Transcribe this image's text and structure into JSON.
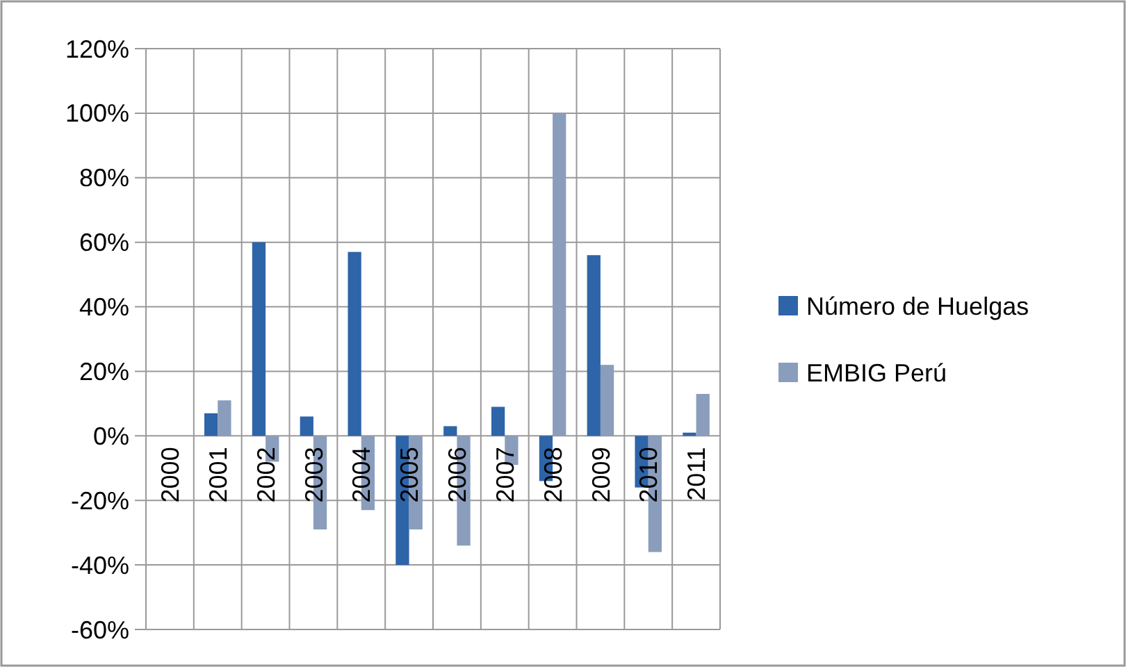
{
  "chart_data": {
    "type": "bar",
    "categories": [
      "2000",
      "2001",
      "2002",
      "2003",
      "2004",
      "2005",
      "2006",
      "2007",
      "2008",
      "2009",
      "2010",
      "2011"
    ],
    "series": [
      {
        "name": "Número de Huelgas",
        "color": "#2e64a8",
        "values": [
          null,
          7,
          60,
          6,
          57,
          -40,
          3,
          9,
          -14,
          56,
          -16,
          1
        ]
      },
      {
        "name": "EMBIG Perú",
        "color": "#8a9dbd",
        "values": [
          null,
          11,
          -8,
          -29,
          -23,
          -29,
          -34,
          -9,
          100,
          22,
          -36,
          13
        ]
      }
    ],
    "ylim": [
      -60,
      120
    ],
    "yticks": [
      {
        "value": -60,
        "label": "-60%"
      },
      {
        "value": -40,
        "label": "-40%"
      },
      {
        "value": -20,
        "label": "-20%"
      },
      {
        "value": 0,
        "label": "0%"
      },
      {
        "value": 20,
        "label": "20%"
      },
      {
        "value": 40,
        "label": "40%"
      },
      {
        "value": 60,
        "label": "60%"
      },
      {
        "value": 80,
        "label": "80%"
      },
      {
        "value": 100,
        "label": "100%"
      },
      {
        "value": 120,
        "label": "120%"
      }
    ],
    "grid": true,
    "legend": "right"
  }
}
